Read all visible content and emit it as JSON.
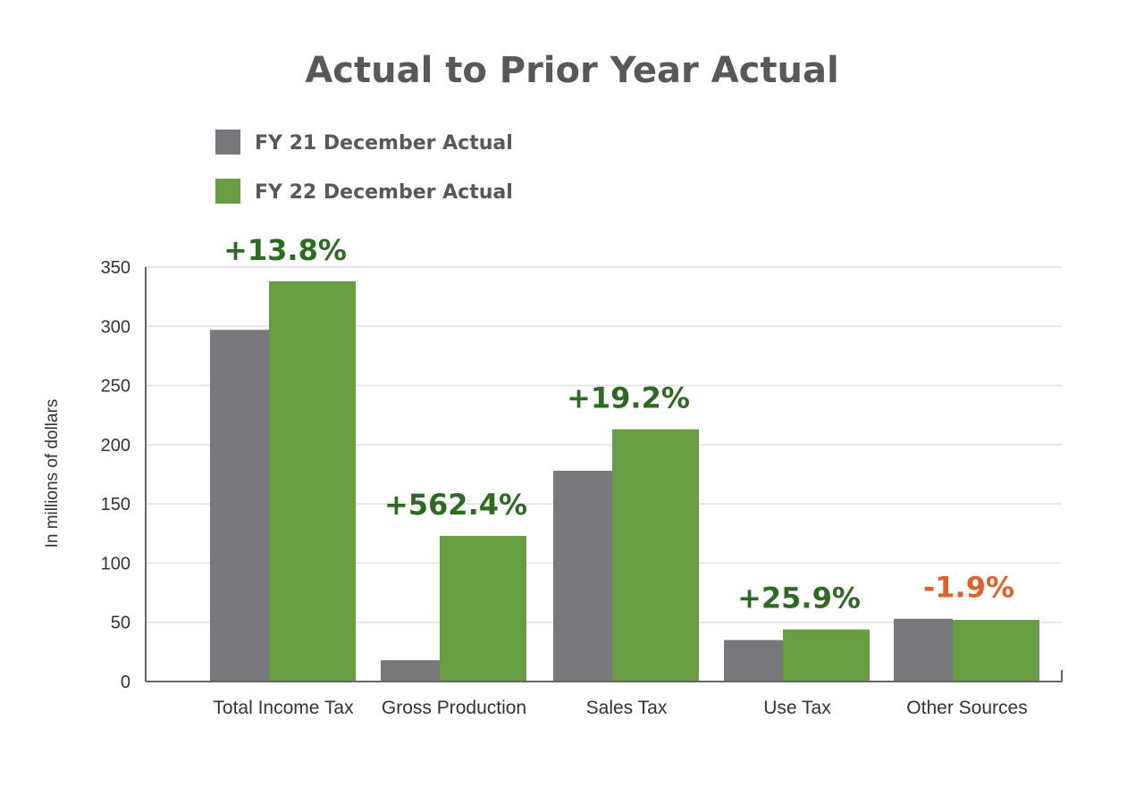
{
  "chart_data": {
    "type": "bar",
    "title": "Actual to Prior Year Actual",
    "ylabel": "In millions of dollars",
    "xlabel": "",
    "ylim": [
      0,
      350
    ],
    "yticks": [
      0,
      50,
      100,
      150,
      200,
      250,
      300,
      350
    ],
    "grid": true,
    "legend_position": "top-left",
    "categories": [
      "Total Income Tax",
      "Gross Production",
      "Sales Tax",
      "Use Tax",
      "Other Sources"
    ],
    "series": [
      {
        "name": "FY 21 December Actual",
        "color": "#78787c",
        "values": [
          297,
          18,
          178,
          35,
          53
        ]
      },
      {
        "name": "FY 22 December Actual",
        "color": "#679e42",
        "values": [
          338,
          123,
          213,
          44,
          52
        ]
      }
    ],
    "annotations": [
      {
        "text": "+13.8%",
        "color": "#2e6b22"
      },
      {
        "text": "+562.4%",
        "color": "#2e6b22"
      },
      {
        "text": "+19.2%",
        "color": "#2e6b22"
      },
      {
        "text": "+25.9%",
        "color": "#2e6b22"
      },
      {
        "text": "-1.9%",
        "color": "#e0602a"
      }
    ]
  }
}
